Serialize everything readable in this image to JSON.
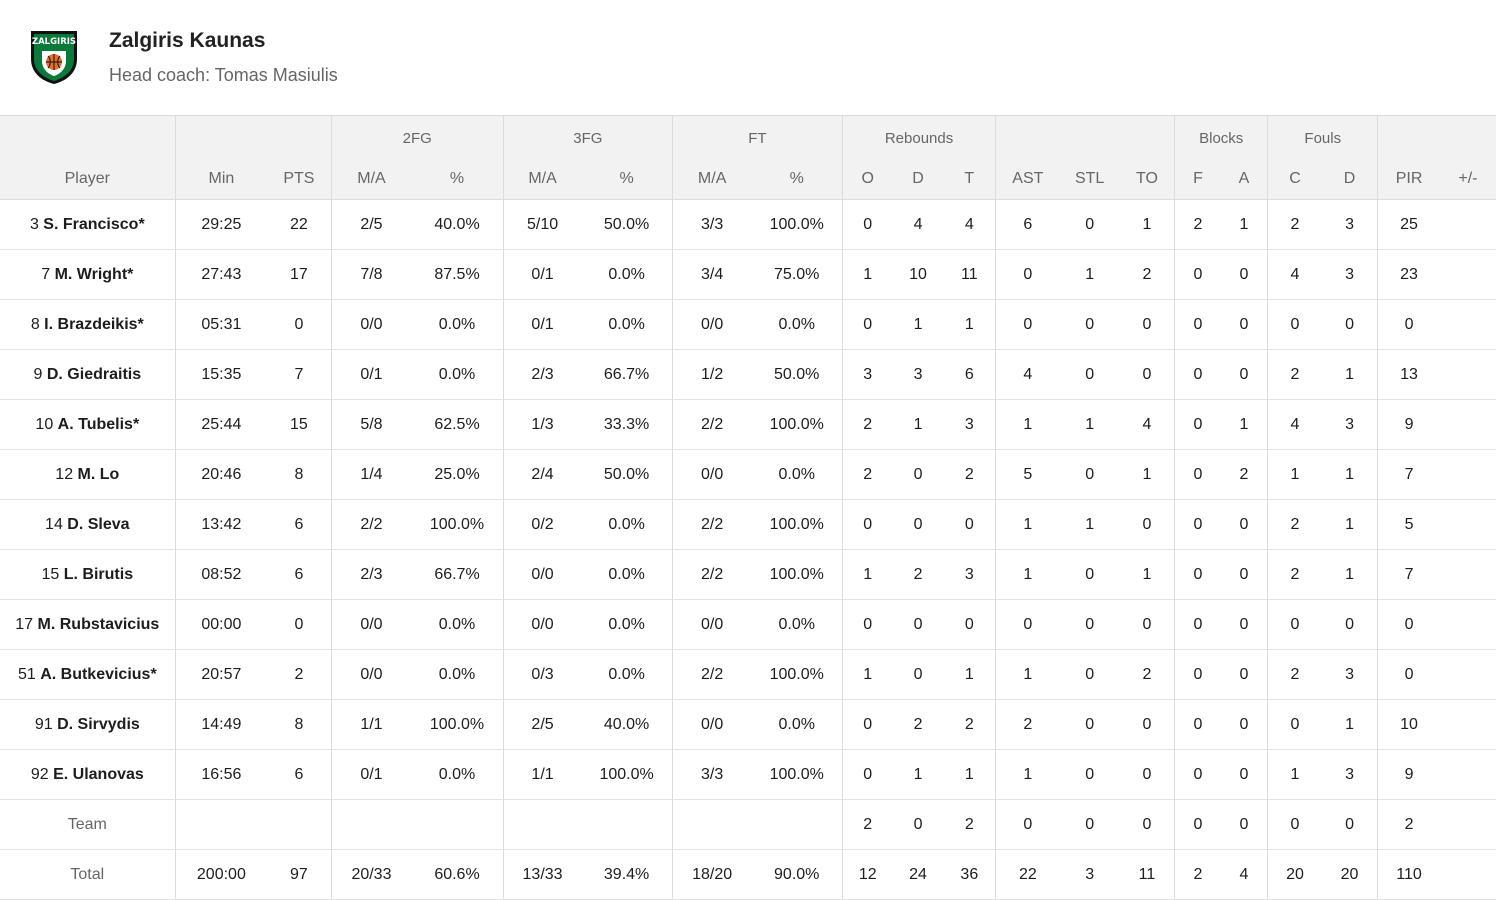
{
  "team": {
    "name": "Zalgiris Kaunas",
    "coach": "Head coach: Tomas Masiulis",
    "logo_text": "ZALGIRIS",
    "colors": {
      "green": "#0a7a3a",
      "orange": "#e4702a",
      "dark": "#111111"
    }
  },
  "table": {
    "groups": {
      "fg2": "2FG",
      "fg3": "3FG",
      "ft": "FT",
      "reb": "Rebounds",
      "blk": "Blocks",
      "fouls": "Fouls"
    },
    "columns": {
      "player": "Player",
      "min": "Min",
      "pts": "PTS",
      "fg2_ma": "M/A",
      "fg2_pct": "%",
      "fg3_ma": "M/A",
      "fg3_pct": "%",
      "ft_ma": "M/A",
      "ft_pct": "%",
      "reb_o": "O",
      "reb_d": "D",
      "reb_t": "T",
      "ast": "AST",
      "stl": "STL",
      "to": "TO",
      "blk_f": "F",
      "blk_a": "A",
      "fouls_c": "C",
      "fouls_d": "D",
      "pir": "PIR",
      "pm": "+/-"
    },
    "rows": [
      {
        "num": "3",
        "name": "S. Francisco*",
        "min": "29:25",
        "pts": "22",
        "fg2_ma": "2/5",
        "fg2_pct": "40.0%",
        "fg3_ma": "5/10",
        "fg3_pct": "50.0%",
        "ft_ma": "3/3",
        "ft_pct": "100.0%",
        "reb_o": "0",
        "reb_d": "4",
        "reb_t": "4",
        "ast": "6",
        "stl": "0",
        "to": "1",
        "blk_f": "2",
        "blk_a": "1",
        "fouls_c": "2",
        "fouls_d": "3",
        "pir": "25",
        "pm": ""
      },
      {
        "num": "7",
        "name": "M. Wright*",
        "min": "27:43",
        "pts": "17",
        "fg2_ma": "7/8",
        "fg2_pct": "87.5%",
        "fg3_ma": "0/1",
        "fg3_pct": "0.0%",
        "ft_ma": "3/4",
        "ft_pct": "75.0%",
        "reb_o": "1",
        "reb_d": "10",
        "reb_t": "11",
        "ast": "0",
        "stl": "1",
        "to": "2",
        "blk_f": "0",
        "blk_a": "0",
        "fouls_c": "4",
        "fouls_d": "3",
        "pir": "23",
        "pm": ""
      },
      {
        "num": "8",
        "name": "I. Brazdeikis*",
        "min": "05:31",
        "pts": "0",
        "fg2_ma": "0/0",
        "fg2_pct": "0.0%",
        "fg3_ma": "0/1",
        "fg3_pct": "0.0%",
        "ft_ma": "0/0",
        "ft_pct": "0.0%",
        "reb_o": "0",
        "reb_d": "1",
        "reb_t": "1",
        "ast": "0",
        "stl": "0",
        "to": "0",
        "blk_f": "0",
        "blk_a": "0",
        "fouls_c": "0",
        "fouls_d": "0",
        "pir": "0",
        "pm": ""
      },
      {
        "num": "9",
        "name": "D. Giedraitis",
        "min": "15:35",
        "pts": "7",
        "fg2_ma": "0/1",
        "fg2_pct": "0.0%",
        "fg3_ma": "2/3",
        "fg3_pct": "66.7%",
        "ft_ma": "1/2",
        "ft_pct": "50.0%",
        "reb_o": "3",
        "reb_d": "3",
        "reb_t": "6",
        "ast": "4",
        "stl": "0",
        "to": "0",
        "blk_f": "0",
        "blk_a": "0",
        "fouls_c": "2",
        "fouls_d": "1",
        "pir": "13",
        "pm": ""
      },
      {
        "num": "10",
        "name": "A. Tubelis*",
        "min": "25:44",
        "pts": "15",
        "fg2_ma": "5/8",
        "fg2_pct": "62.5%",
        "fg3_ma": "1/3",
        "fg3_pct": "33.3%",
        "ft_ma": "2/2",
        "ft_pct": "100.0%",
        "reb_o": "2",
        "reb_d": "1",
        "reb_t": "3",
        "ast": "1",
        "stl": "1",
        "to": "4",
        "blk_f": "0",
        "blk_a": "1",
        "fouls_c": "4",
        "fouls_d": "3",
        "pir": "9",
        "pm": ""
      },
      {
        "num": "12",
        "name": "M. Lo",
        "min": "20:46",
        "pts": "8",
        "fg2_ma": "1/4",
        "fg2_pct": "25.0%",
        "fg3_ma": "2/4",
        "fg3_pct": "50.0%",
        "ft_ma": "0/0",
        "ft_pct": "0.0%",
        "reb_o": "2",
        "reb_d": "0",
        "reb_t": "2",
        "ast": "5",
        "stl": "0",
        "to": "1",
        "blk_f": "0",
        "blk_a": "2",
        "fouls_c": "1",
        "fouls_d": "1",
        "pir": "7",
        "pm": ""
      },
      {
        "num": "14",
        "name": "D. Sleva",
        "min": "13:42",
        "pts": "6",
        "fg2_ma": "2/2",
        "fg2_pct": "100.0%",
        "fg3_ma": "0/2",
        "fg3_pct": "0.0%",
        "ft_ma": "2/2",
        "ft_pct": "100.0%",
        "reb_o": "0",
        "reb_d": "0",
        "reb_t": "0",
        "ast": "1",
        "stl": "1",
        "to": "0",
        "blk_f": "0",
        "blk_a": "0",
        "fouls_c": "2",
        "fouls_d": "1",
        "pir": "5",
        "pm": ""
      },
      {
        "num": "15",
        "name": "L. Birutis",
        "min": "08:52",
        "pts": "6",
        "fg2_ma": "2/3",
        "fg2_pct": "66.7%",
        "fg3_ma": "0/0",
        "fg3_pct": "0.0%",
        "ft_ma": "2/2",
        "ft_pct": "100.0%",
        "reb_o": "1",
        "reb_d": "2",
        "reb_t": "3",
        "ast": "1",
        "stl": "0",
        "to": "1",
        "blk_f": "0",
        "blk_a": "0",
        "fouls_c": "2",
        "fouls_d": "1",
        "pir": "7",
        "pm": ""
      },
      {
        "num": "17",
        "name": "M. Rubstavicius",
        "min": "00:00",
        "pts": "0",
        "fg2_ma": "0/0",
        "fg2_pct": "0.0%",
        "fg3_ma": "0/0",
        "fg3_pct": "0.0%",
        "ft_ma": "0/0",
        "ft_pct": "0.0%",
        "reb_o": "0",
        "reb_d": "0",
        "reb_t": "0",
        "ast": "0",
        "stl": "0",
        "to": "0",
        "blk_f": "0",
        "blk_a": "0",
        "fouls_c": "0",
        "fouls_d": "0",
        "pir": "0",
        "pm": ""
      },
      {
        "num": "51",
        "name": "A. Butkevicius*",
        "min": "20:57",
        "pts": "2",
        "fg2_ma": "0/0",
        "fg2_pct": "0.0%",
        "fg3_ma": "0/3",
        "fg3_pct": "0.0%",
        "ft_ma": "2/2",
        "ft_pct": "100.0%",
        "reb_o": "1",
        "reb_d": "0",
        "reb_t": "1",
        "ast": "1",
        "stl": "0",
        "to": "2",
        "blk_f": "0",
        "blk_a": "0",
        "fouls_c": "2",
        "fouls_d": "3",
        "pir": "0",
        "pm": ""
      },
      {
        "num": "91",
        "name": "D. Sirvydis",
        "min": "14:49",
        "pts": "8",
        "fg2_ma": "1/1",
        "fg2_pct": "100.0%",
        "fg3_ma": "2/5",
        "fg3_pct": "40.0%",
        "ft_ma": "0/0",
        "ft_pct": "0.0%",
        "reb_o": "0",
        "reb_d": "2",
        "reb_t": "2",
        "ast": "2",
        "stl": "0",
        "to": "0",
        "blk_f": "0",
        "blk_a": "0",
        "fouls_c": "0",
        "fouls_d": "1",
        "pir": "10",
        "pm": ""
      },
      {
        "num": "92",
        "name": "E. Ulanovas",
        "min": "16:56",
        "pts": "6",
        "fg2_ma": "0/1",
        "fg2_pct": "0.0%",
        "fg3_ma": "1/1",
        "fg3_pct": "100.0%",
        "ft_ma": "3/3",
        "ft_pct": "100.0%",
        "reb_o": "0",
        "reb_d": "1",
        "reb_t": "1",
        "ast": "1",
        "stl": "0",
        "to": "0",
        "blk_f": "0",
        "blk_a": "0",
        "fouls_c": "1",
        "fouls_d": "3",
        "pir": "9",
        "pm": ""
      },
      {
        "num": "",
        "name": "Team",
        "plain": true,
        "min": "",
        "pts": "",
        "fg2_ma": "",
        "fg2_pct": "",
        "fg3_ma": "",
        "fg3_pct": "",
        "ft_ma": "",
        "ft_pct": "",
        "reb_o": "2",
        "reb_d": "0",
        "reb_t": "2",
        "ast": "0",
        "stl": "0",
        "to": "0",
        "blk_f": "0",
        "blk_a": "0",
        "fouls_c": "0",
        "fouls_d": "0",
        "pir": "2",
        "pm": ""
      },
      {
        "num": "",
        "name": "Total",
        "plain": true,
        "min": "200:00",
        "pts": "97",
        "fg2_ma": "20/33",
        "fg2_pct": "60.6%",
        "fg3_ma": "13/33",
        "fg3_pct": "39.4%",
        "ft_ma": "18/20",
        "ft_pct": "90.0%",
        "reb_o": "12",
        "reb_d": "24",
        "reb_t": "36",
        "ast": "22",
        "stl": "3",
        "to": "11",
        "blk_f": "2",
        "blk_a": "4",
        "fouls_c": "20",
        "fouls_d": "20",
        "pir": "110",
        "pm": ""
      }
    ]
  }
}
